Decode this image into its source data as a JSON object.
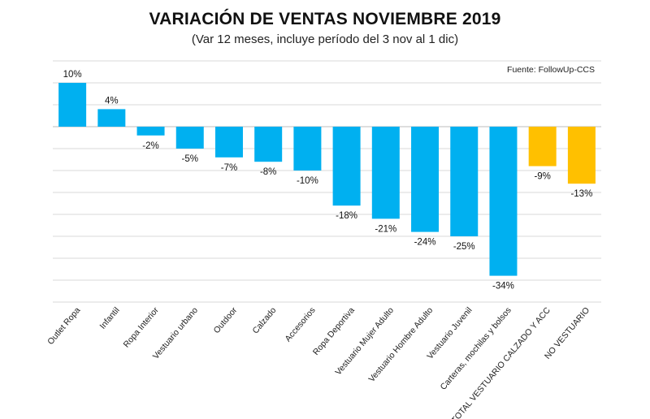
{
  "chart_data": {
    "type": "bar",
    "title": "VARIACIÓN DE VENTAS NOVIEMBRE 2019",
    "subtitle": "(Var 12 meses, incluye período del 3 nov al 1 dic)",
    "source": "Fuente: FollowUp-CCS",
    "xlabel": "",
    "ylabel": "",
    "ylim": [
      -40,
      15
    ],
    "grid": true,
    "legend": "none",
    "categories": [
      "Outlet Ropa",
      "Infantil",
      "Ropa Interior",
      "Vestuario urbano",
      "Outdoor",
      "Calzado",
      "Accesorios",
      "Ropa Deportiva",
      "Vestuario Mujer Adulto",
      "Vestuario Hombre Adulto",
      "Vestuario Juvenil",
      "Carteras, mochilas y bolsos",
      "TOTAL VESTUARIO CALZADO Y ACC",
      "NO VESTUARIO"
    ],
    "values": [
      10,
      4,
      -2,
      -5,
      -7,
      -8,
      -10,
      -18,
      -21,
      -24,
      -25,
      -34,
      -9,
      -13
    ],
    "value_labels": [
      "10%",
      "4%",
      "-2%",
      "-5%",
      "-7%",
      "-8%",
      "-10%",
      "-18%",
      "-21%",
      "-24%",
      "-25%",
      "-34%",
      "-9%",
      "-13%"
    ],
    "colors": {
      "category": "#00b0f0",
      "total": "#ffc000"
    },
    "highlighted_categories": [
      "TOTAL VESTUARIO CALZADO Y ACC",
      "NO VESTUARIO"
    ]
  }
}
